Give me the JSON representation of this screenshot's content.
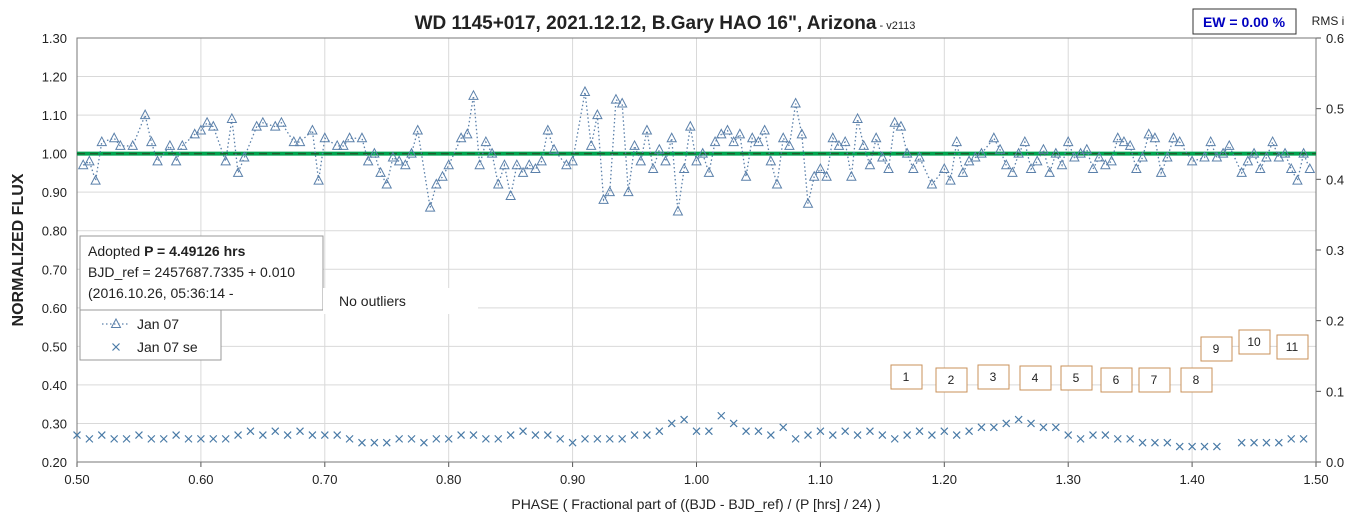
{
  "chart_data": {
    "type": "scatter",
    "title": "WD 1145+017, 2021.12.12, B.Gary HAO 16\", Arizona",
    "title_suffix": " - v2113",
    "badge": "EW = 0.00 %",
    "y2_title": "RMS i",
    "ylabel": "NORMALIZED FLUX",
    "xlabel": "PHASE ( Fractional part of ((BJD - BJD_ref) / (P [hrs] / 24) )",
    "annotation": {
      "prefix": "Adopted ",
      "bold": "P = 4.49126 hrs",
      "line2": "BJD_ref = 2457687.7335 + 0.010",
      "line3": "(2016.10.26, 05:36:14 -"
    },
    "note": "No outliers",
    "markers": [
      "1",
      "2",
      "3",
      "4",
      "5",
      "6",
      "7",
      "8",
      "9",
      "10",
      "11"
    ],
    "reference_line": 1.0,
    "reference_color": "#00a550",
    "grid": true,
    "legend": "lower left",
    "xlim": [
      0.5,
      1.5
    ],
    "xticks": [
      {
        "value": 0.5,
        "label": "0.50"
      },
      {
        "value": 0.6,
        "label": "0.60"
      },
      {
        "value": 0.7,
        "label": "0.70"
      },
      {
        "value": 0.8,
        "label": "0.80"
      },
      {
        "value": 0.9,
        "label": "0.90"
      },
      {
        "value": 1.0,
        "label": "1.00"
      },
      {
        "value": 1.1,
        "label": "1.10"
      },
      {
        "value": 1.2,
        "label": "1.20"
      },
      {
        "value": 1.3,
        "label": "1.30"
      },
      {
        "value": 1.4,
        "label": "1.40"
      },
      {
        "value": 1.5,
        "label": "1.50"
      }
    ],
    "ylim": [
      0.2,
      1.3
    ],
    "yticks": [
      {
        "value": 0.2,
        "label": "0.20"
      },
      {
        "value": 0.3,
        "label": "0.30"
      },
      {
        "value": 0.4,
        "label": "0.40"
      },
      {
        "value": 0.5,
        "label": "0.50"
      },
      {
        "value": 0.6,
        "label": "0.60"
      },
      {
        "value": 0.7,
        "label": "0.70"
      },
      {
        "value": 0.8,
        "label": "0.80"
      },
      {
        "value": 0.9,
        "label": "0.90"
      },
      {
        "value": 1.0,
        "label": "1.00"
      },
      {
        "value": 1.1,
        "label": "1.10"
      },
      {
        "value": 1.2,
        "label": "1.20"
      },
      {
        "value": 1.3,
        "label": "1.30"
      }
    ],
    "y2lim": [
      0,
      0.6
    ],
    "y2ticks": [
      {
        "value": 0,
        "label": "0.0"
      },
      0.1,
      0.2,
      0.3,
      0.4,
      0.5,
      {
        "value": 0.6,
        "label": "0.6"
      }
    ],
    "series": [
      {
        "name": "Jan 07",
        "color": "#5b80aa",
        "marker": "triangle",
        "line": "dotted",
        "x": [
          0.505,
          0.51,
          0.515,
          0.52,
          0.53,
          0.535,
          0.545,
          0.555,
          0.56,
          0.565,
          0.575,
          0.58,
          0.585,
          0.595,
          0.6,
          0.605,
          0.61,
          0.62,
          0.625,
          0.63,
          0.635,
          0.645,
          0.65,
          0.66,
          0.665,
          0.675,
          0.68,
          0.69,
          0.695,
          0.7,
          0.71,
          0.715,
          0.72,
          0.73,
          0.735,
          0.74,
          0.745,
          0.75,
          0.755,
          0.76,
          0.765,
          0.77,
          0.775,
          0.785,
          0.79,
          0.795,
          0.8,
          0.81,
          0.815,
          0.82,
          0.825,
          0.83,
          0.835,
          0.84,
          0.845,
          0.85,
          0.855,
          0.86,
          0.865,
          0.87,
          0.875,
          0.88,
          0.885,
          0.895,
          0.9,
          0.91,
          0.915,
          0.92,
          0.925,
          0.93,
          0.935,
          0.94,
          0.945,
          0.95,
          0.955,
          0.96,
          0.965,
          0.97,
          0.975,
          0.98,
          0.985,
          0.99,
          0.995,
          1.0,
          1.005,
          1.01,
          1.015,
          1.02,
          1.025,
          1.03,
          1.035,
          1.04,
          1.045,
          1.05,
          1.055,
          1.06,
          1.065,
          1.07,
          1.075,
          1.08,
          1.085,
          1.09,
          1.095,
          1.1,
          1.105,
          1.11,
          1.115,
          1.12,
          1.125,
          1.13,
          1.135,
          1.14,
          1.145,
          1.15,
          1.155,
          1.16,
          1.165,
          1.17,
          1.175,
          1.18,
          1.19,
          1.2,
          1.205,
          1.21,
          1.215,
          1.22,
          1.225,
          1.23,
          1.24,
          1.245,
          1.25,
          1.255,
          1.26,
          1.265,
          1.27,
          1.275,
          1.28,
          1.285,
          1.29,
          1.295,
          1.3,
          1.305,
          1.31,
          1.315,
          1.32,
          1.325,
          1.33,
          1.335,
          1.34,
          1.345,
          1.35,
          1.355,
          1.36,
          1.365,
          1.37,
          1.375,
          1.38,
          1.385,
          1.39,
          1.4,
          1.41,
          1.415,
          1.42,
          1.425,
          1.43,
          1.44,
          1.445,
          1.45,
          1.455,
          1.46,
          1.465,
          1.47,
          1.475,
          1.48,
          1.485,
          1.49,
          1.495
        ],
        "values": [
          0.97,
          0.98,
          0.93,
          1.03,
          1.04,
          1.02,
          1.02,
          1.1,
          1.03,
          0.98,
          1.02,
          0.98,
          1.02,
          1.05,
          1.06,
          1.08,
          1.07,
          0.98,
          1.09,
          0.95,
          0.99,
          1.07,
          1.08,
          1.07,
          1.08,
          1.03,
          1.03,
          1.06,
          0.93,
          1.04,
          1.02,
          1.02,
          1.04,
          1.04,
          0.98,
          1.0,
          0.95,
          0.92,
          0.99,
          0.98,
          0.97,
          1.0,
          1.06,
          0.86,
          0.92,
          0.94,
          0.97,
          1.04,
          1.05,
          1.15,
          0.97,
          1.03,
          1.0,
          0.92,
          0.97,
          0.89,
          0.97,
          0.95,
          0.97,
          0.96,
          0.98,
          1.06,
          1.01,
          0.97,
          0.98,
          1.16,
          1.02,
          1.1,
          0.88,
          0.9,
          1.14,
          1.13,
          0.9,
          1.02,
          0.98,
          1.06,
          0.96,
          1.01,
          0.98,
          1.04,
          0.85,
          0.96,
          1.07,
          0.98,
          1.0,
          0.95,
          1.03,
          1.05,
          1.06,
          1.03,
          1.05,
          0.94,
          1.04,
          1.03,
          1.06,
          0.98,
          0.92,
          1.04,
          1.02,
          1.13,
          1.05,
          0.87,
          0.94,
          0.96,
          0.94,
          1.04,
          1.02,
          1.03,
          0.94,
          1.09,
          1.02,
          0.97,
          1.04,
          0.99,
          0.96,
          1.08,
          1.07,
          1.0,
          0.96,
          0.99,
          0.92,
          0.96,
          0.93,
          1.03,
          0.95,
          0.98,
          0.99,
          1.0,
          1.04,
          1.01,
          0.97,
          0.95,
          1.0,
          1.03,
          0.96,
          0.98,
          1.01,
          0.95,
          1.0,
          0.97,
          1.03,
          0.99,
          1.0,
          1.01,
          0.96,
          0.99,
          0.97,
          0.98,
          1.04,
          1.03,
          1.02,
          0.96,
          0.99,
          1.05,
          1.04,
          0.95,
          0.99,
          1.04,
          1.03,
          0.98,
          0.99,
          1.03,
          0.99,
          1.0,
          1.02,
          0.95,
          0.98,
          1.0,
          0.96,
          0.99,
          1.03,
          0.99,
          1.0,
          0.96,
          0.93,
          1.0,
          0.96
        ]
      },
      {
        "name": "Jan 07 se",
        "color": "#4a7ba7",
        "marker": "x",
        "x": [
          0.5,
          0.51,
          0.52,
          0.53,
          0.54,
          0.55,
          0.56,
          0.57,
          0.58,
          0.59,
          0.6,
          0.61,
          0.62,
          0.63,
          0.64,
          0.65,
          0.66,
          0.67,
          0.68,
          0.69,
          0.7,
          0.71,
          0.72,
          0.73,
          0.74,
          0.75,
          0.76,
          0.77,
          0.78,
          0.79,
          0.8,
          0.81,
          0.82,
          0.83,
          0.84,
          0.85,
          0.86,
          0.87,
          0.88,
          0.89,
          0.9,
          0.91,
          0.92,
          0.93,
          0.94,
          0.95,
          0.96,
          0.97,
          0.98,
          0.99,
          1.0,
          1.01,
          1.02,
          1.03,
          1.04,
          1.05,
          1.06,
          1.07,
          1.08,
          1.09,
          1.1,
          1.11,
          1.12,
          1.13,
          1.14,
          1.15,
          1.16,
          1.17,
          1.18,
          1.19,
          1.2,
          1.21,
          1.22,
          1.23,
          1.24,
          1.25,
          1.26,
          1.27,
          1.28,
          1.29,
          1.3,
          1.31,
          1.32,
          1.33,
          1.34,
          1.35,
          1.36,
          1.37,
          1.38,
          1.39,
          1.4,
          1.41,
          1.42,
          1.44,
          1.45,
          1.46,
          1.47,
          1.48,
          1.49
        ],
        "values": [
          0.27,
          0.26,
          0.27,
          0.26,
          0.26,
          0.27,
          0.26,
          0.26,
          0.27,
          0.26,
          0.26,
          0.26,
          0.26,
          0.27,
          0.28,
          0.27,
          0.28,
          0.27,
          0.28,
          0.27,
          0.27,
          0.27,
          0.26,
          0.25,
          0.25,
          0.25,
          0.26,
          0.26,
          0.25,
          0.26,
          0.26,
          0.27,
          0.27,
          0.26,
          0.26,
          0.27,
          0.28,
          0.27,
          0.27,
          0.26,
          0.25,
          0.26,
          0.26,
          0.26,
          0.26,
          0.27,
          0.27,
          0.28,
          0.3,
          0.31,
          0.28,
          0.28,
          0.32,
          0.3,
          0.28,
          0.28,
          0.27,
          0.29,
          0.26,
          0.27,
          0.28,
          0.27,
          0.28,
          0.27,
          0.28,
          0.27,
          0.26,
          0.27,
          0.28,
          0.27,
          0.28,
          0.27,
          0.28,
          0.29,
          0.29,
          0.3,
          0.31,
          0.3,
          0.29,
          0.29,
          0.27,
          0.26,
          0.27,
          0.27,
          0.26,
          0.26,
          0.25,
          0.25,
          0.25,
          0.24,
          0.24,
          0.24,
          0.24,
          0.25,
          0.25,
          0.25,
          0.25,
          0.26,
          0.26
        ]
      }
    ]
  }
}
